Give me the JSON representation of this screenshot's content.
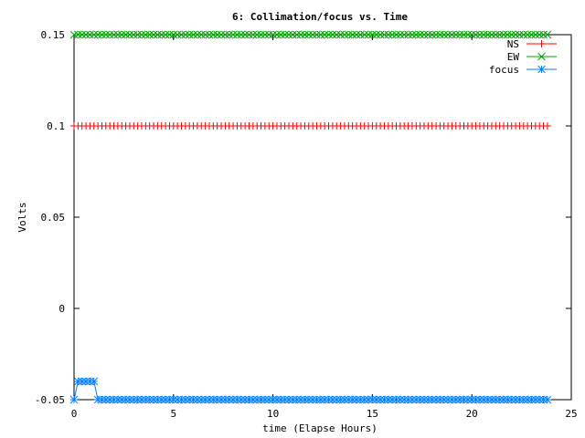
{
  "chart_data": {
    "type": "line",
    "title": "6: Collimation/focus vs. Time",
    "xlabel": "time (Elapse Hours)",
    "ylabel": "Volts",
    "xlim": [
      0,
      25
    ],
    "ylim": [
      -0.05,
      0.15
    ],
    "x_ticks": [
      {
        "value": 0,
        "label": "0"
      },
      {
        "value": 5,
        "label": "5"
      },
      {
        "value": 10,
        "label": "10"
      },
      {
        "value": 15,
        "label": "15"
      },
      {
        "value": 20,
        "label": "20"
      },
      {
        "value": 25,
        "label": "25"
      }
    ],
    "y_ticks": [
      {
        "value": -0.05,
        "label": "-0.05"
      },
      {
        "value": 0,
        "label": "0"
      },
      {
        "value": 0.05,
        "label": "0.05"
      },
      {
        "value": 0.1,
        "label": "0.1"
      },
      {
        "value": 0.15,
        "label": "0.15"
      }
    ],
    "grid": false,
    "legend_position": "top-right",
    "series": [
      {
        "name": "NS",
        "color": "#ff0000",
        "marker": "plus",
        "x_start": 0,
        "x_end": 23.8,
        "x_step": 0.2,
        "segments": [
          {
            "from": 0,
            "to": 23.8,
            "y": 0.1
          }
        ]
      },
      {
        "name": "EW",
        "color": "#00a000",
        "marker": "cross",
        "x_start": 0,
        "x_end": 23.8,
        "x_step": 0.2,
        "segments": [
          {
            "from": 0,
            "to": 23.8,
            "y": 0.15
          }
        ]
      },
      {
        "name": "focus",
        "color": "#0080ff",
        "marker": "star",
        "x_start": 0,
        "x_end": 23.8,
        "x_step": 0.2,
        "segments": [
          {
            "from": 0,
            "to": 0,
            "y": -0.05
          },
          {
            "from": 0.2,
            "to": 1,
            "y": -0.04
          },
          {
            "from": 1.2,
            "to": 23.8,
            "y": -0.05
          }
        ]
      }
    ]
  }
}
